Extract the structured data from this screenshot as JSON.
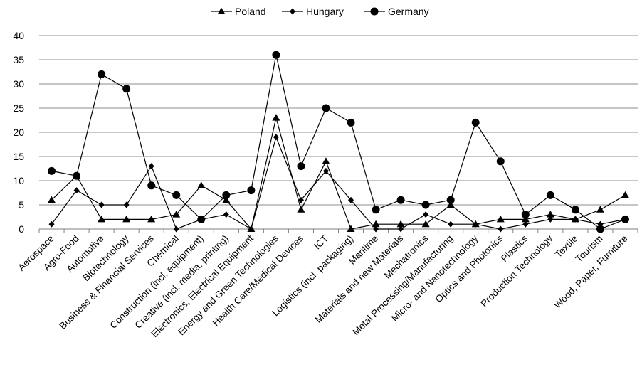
{
  "chart_data": {
    "type": "line",
    "categories": [
      "Aerospace",
      "Agro-Food",
      "Automotive",
      "Biotechnology",
      "Business & Financial Services",
      "Chemical",
      "Construction (incl. equipment)",
      "Creative (incl. media, printing)",
      "Electronics, Electrical Equipment",
      "Energy and Green Technologies",
      "Health Care/Medical Devices",
      "ICT",
      "Logistics (incl. packaging)",
      "Maritime",
      "Materials and new Materials",
      "Mechatronics",
      "Metal Processing/Manufacturing",
      "Micro- and Nanotechnology",
      "Optics and Photonics",
      "Plastics",
      "Production Technology",
      "Textile",
      "Tourism",
      "Wood, Paper, Furniture"
    ],
    "series": [
      {
        "name": "Poland",
        "marker": "triangle",
        "values": [
          6,
          11,
          2,
          2,
          2,
          3,
          9,
          6,
          0,
          23,
          4,
          14,
          0,
          1,
          1,
          1,
          5,
          1,
          2,
          2,
          3,
          2,
          4,
          7
        ]
      },
      {
        "name": "Hungary",
        "marker": "diamond",
        "values": [
          1,
          8,
          5,
          5,
          13,
          0,
          2,
          3,
          0,
          19,
          6,
          12,
          6,
          0,
          0,
          3,
          1,
          1,
          0,
          1,
          2,
          2,
          1,
          2
        ]
      },
      {
        "name": "Germany",
        "marker": "circle",
        "values": [
          12,
          11,
          32,
          29,
          9,
          7,
          2,
          7,
          8,
          36,
          13,
          25,
          22,
          4,
          6,
          5,
          6,
          22,
          14,
          3,
          7,
          4,
          0,
          2
        ]
      }
    ],
    "ylim": [
      0,
      40
    ],
    "yticks": [
      0,
      5,
      10,
      15,
      20,
      25,
      30,
      35,
      40
    ],
    "grid": true,
    "legend_position": "top-center",
    "line_color": "#000000",
    "grid_color": "#8c8c8c"
  }
}
